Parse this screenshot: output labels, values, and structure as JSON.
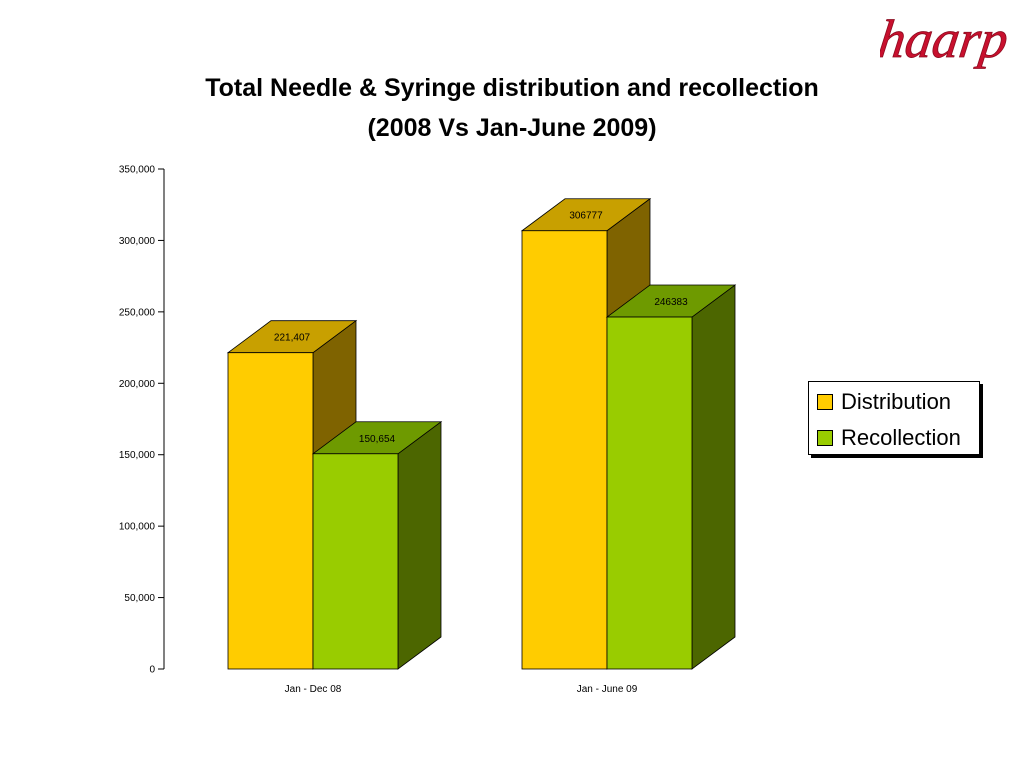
{
  "logo_text": "haarp",
  "chart_data": {
    "type": "bar",
    "title": "Total Needle & Syringe distribution and recollection",
    "subtitle": "(2008 Vs Jan-June 2009)",
    "categories": [
      "Jan - Dec 08",
      "Jan - June 09"
    ],
    "series": [
      {
        "name": "Distribution",
        "values": [
          221407,
          306777
        ],
        "labels": [
          "221,407",
          "306777"
        ],
        "color": "#FFCC00",
        "top_color": "#C8A000",
        "side_color": "#7F6300"
      },
      {
        "name": "Recollection",
        "values": [
          150654,
          246383
        ],
        "labels": [
          "150,654",
          "246383"
        ],
        "color": "#99CC00",
        "top_color": "#6E9A00",
        "side_color": "#4C6600"
      }
    ],
    "ylim": [
      0,
      350000
    ],
    "yticks": [
      0,
      50000,
      100000,
      150000,
      200000,
      250000,
      300000,
      350000
    ],
    "ytick_labels": [
      "0",
      "50,000",
      "100,000",
      "150,000",
      "200,000",
      "250,000",
      "300,000",
      "350,000"
    ],
    "style": "3d",
    "grid": false,
    "legend_position": "right"
  }
}
